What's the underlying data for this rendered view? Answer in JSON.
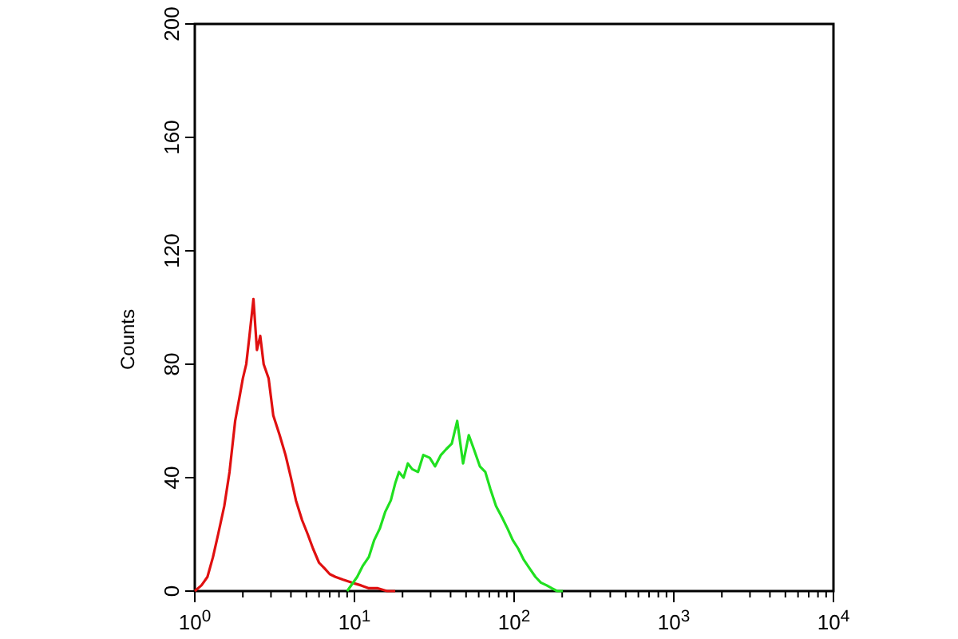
{
  "chart_data": {
    "type": "line",
    "ylabel": "Counts",
    "log": "x",
    "xlim": [
      1,
      10000
    ],
    "ylim": [
      0,
      200
    ],
    "xticks": [
      {
        "value": 1,
        "label": "10$^{0}$"
      },
      {
        "value": 2,
        "label": null
      },
      {
        "value": 3,
        "label": null
      },
      {
        "value": 4,
        "label": null
      },
      {
        "value": 5,
        "label": null
      },
      {
        "value": 6,
        "label": null
      },
      {
        "value": 7,
        "label": null
      },
      {
        "value": 8,
        "label": null
      },
      {
        "value": 9,
        "label": null
      },
      {
        "value": 10,
        "label": "10$^{1}$"
      },
      {
        "value": 20,
        "label": null
      },
      {
        "value": 30,
        "label": null
      },
      {
        "value": 40,
        "label": null
      },
      {
        "value": 50,
        "label": null
      },
      {
        "value": 60,
        "label": null
      },
      {
        "value": 70,
        "label": null
      },
      {
        "value": 80,
        "label": null
      },
      {
        "value": 90,
        "label": null
      },
      {
        "value": 100,
        "label": "10$^{2}$"
      },
      {
        "value": 200,
        "label": null
      },
      {
        "value": 300,
        "label": null
      },
      {
        "value": 400,
        "label": null
      },
      {
        "value": 500,
        "label": null
      },
      {
        "value": 600,
        "label": null
      },
      {
        "value": 700,
        "label": null
      },
      {
        "value": 800,
        "label": null
      },
      {
        "value": 900,
        "label": null
      },
      {
        "value": 1000,
        "label": "10$^{3}$"
      },
      {
        "value": 2000,
        "label": null
      },
      {
        "value": 3000,
        "label": null
      },
      {
        "value": 4000,
        "label": null
      },
      {
        "value": 5000,
        "label": null
      },
      {
        "value": 6000,
        "label": null
      },
      {
        "value": 7000,
        "label": null
      },
      {
        "value": 8000,
        "label": null
      },
      {
        "value": 9000,
        "label": null
      },
      {
        "value": 10000,
        "label": "10$^{4}$"
      }
    ],
    "yticks": [
      0,
      40,
      80,
      120,
      160,
      200
    ],
    "grid": false,
    "marker": "none",
    "line_style": "solid",
    "series": [
      {
        "color": "#e01010",
        "x": [
          1,
          1.1,
          1.2,
          1.3,
          1.4,
          1.53,
          1.65,
          1.79,
          1.9,
          2.0,
          2.1,
          2.2,
          2.33,
          2.45,
          2.57,
          2.7,
          2.9,
          3.1,
          3.4,
          3.7,
          4.0,
          4.3,
          4.7,
          5.1,
          5.5,
          6.0,
          6.5,
          7.0,
          7.6,
          8.5,
          9.6,
          11,
          12.3,
          14,
          16,
          18
        ],
        "values": [
          0,
          2,
          5,
          12,
          20,
          30,
          42,
          60,
          68,
          75,
          80,
          90,
          103,
          85,
          90,
          80,
          75,
          62,
          55,
          48,
          40,
          32,
          25,
          20,
          15,
          10,
          8,
          6,
          5,
          4,
          3,
          2,
          1,
          1,
          0,
          0
        ]
      },
      {
        "color": "#20e020",
        "x": [
          9,
          10.4,
          11.3,
          12.3,
          13.3,
          14.4,
          15.6,
          16.9,
          18,
          19,
          20.3,
          21.6,
          23,
          25,
          27,
          29.6,
          32,
          34.8,
          37.5,
          40.7,
          44,
          47.9,
          52,
          56,
          61,
          66,
          71,
          77,
          84,
          91,
          98,
          106,
          115,
          125,
          136,
          147,
          160,
          172,
          186,
          202
        ],
        "values": [
          0,
          5,
          9,
          12,
          18,
          22,
          28,
          32,
          38,
          42,
          40,
          45,
          43,
          42,
          48,
          47,
          44,
          48,
          50,
          52,
          60,
          45,
          55,
          50,
          44,
          42,
          36,
          30,
          26,
          22,
          18,
          15,
          11,
          8,
          5,
          3,
          2,
          1,
          0,
          0
        ]
      }
    ]
  }
}
